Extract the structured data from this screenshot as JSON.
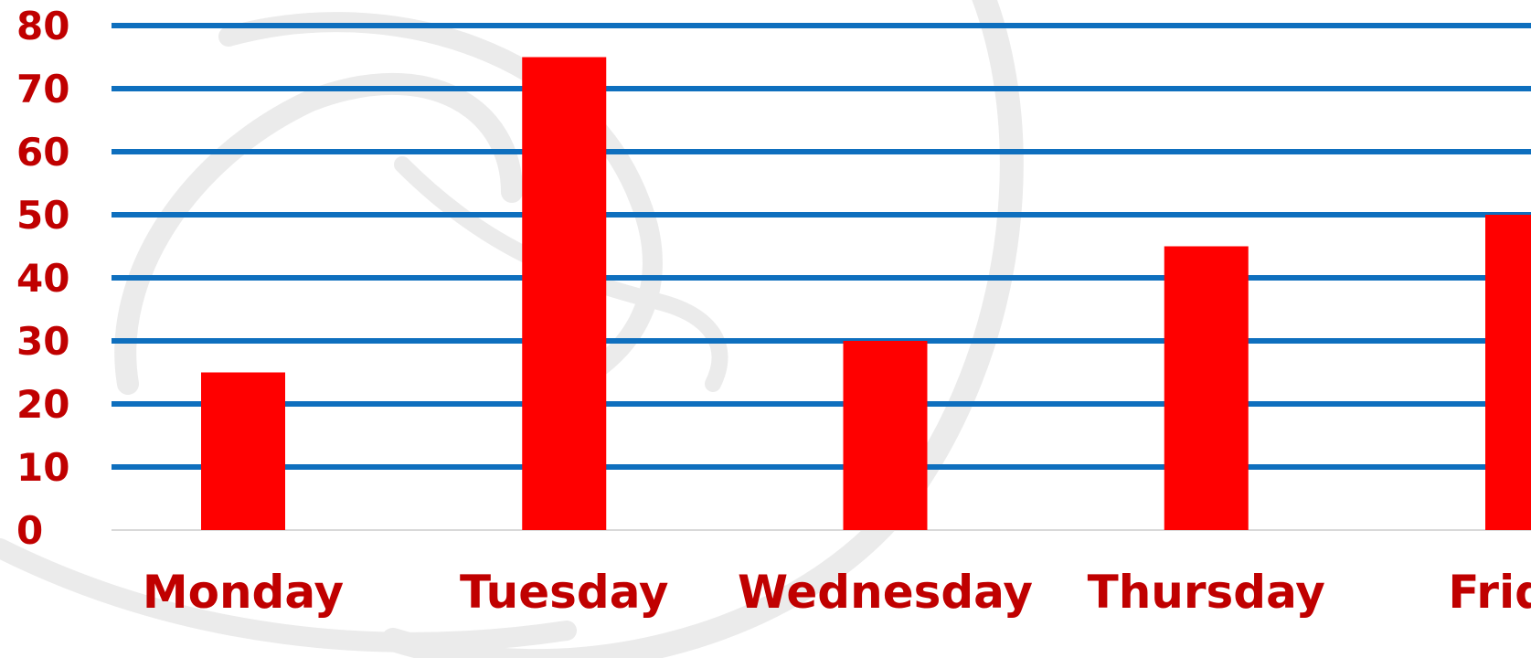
{
  "chart_data": {
    "type": "bar",
    "categories": [
      "Monday",
      "Tuesday",
      "Wednesday",
      "Thursday",
      "Friday"
    ],
    "values": [
      25,
      75,
      30,
      45,
      50
    ],
    "title": "",
    "xlabel": "",
    "ylabel": "",
    "ylim": [
      0,
      80
    ],
    "yticks": [
      0,
      10,
      20,
      30,
      40,
      50,
      60,
      70,
      80
    ],
    "ytick_labels": [
      "0",
      "10",
      "20",
      "30",
      "40",
      "50",
      "60",
      "70",
      "80"
    ],
    "grid": true,
    "legend": "none",
    "colors": {
      "bar": "#ff0000",
      "gridline": "#0e6fbe",
      "baseline": "#d9d9d9",
      "label_text": "#c00000",
      "watermark": "#ebebeb"
    }
  }
}
